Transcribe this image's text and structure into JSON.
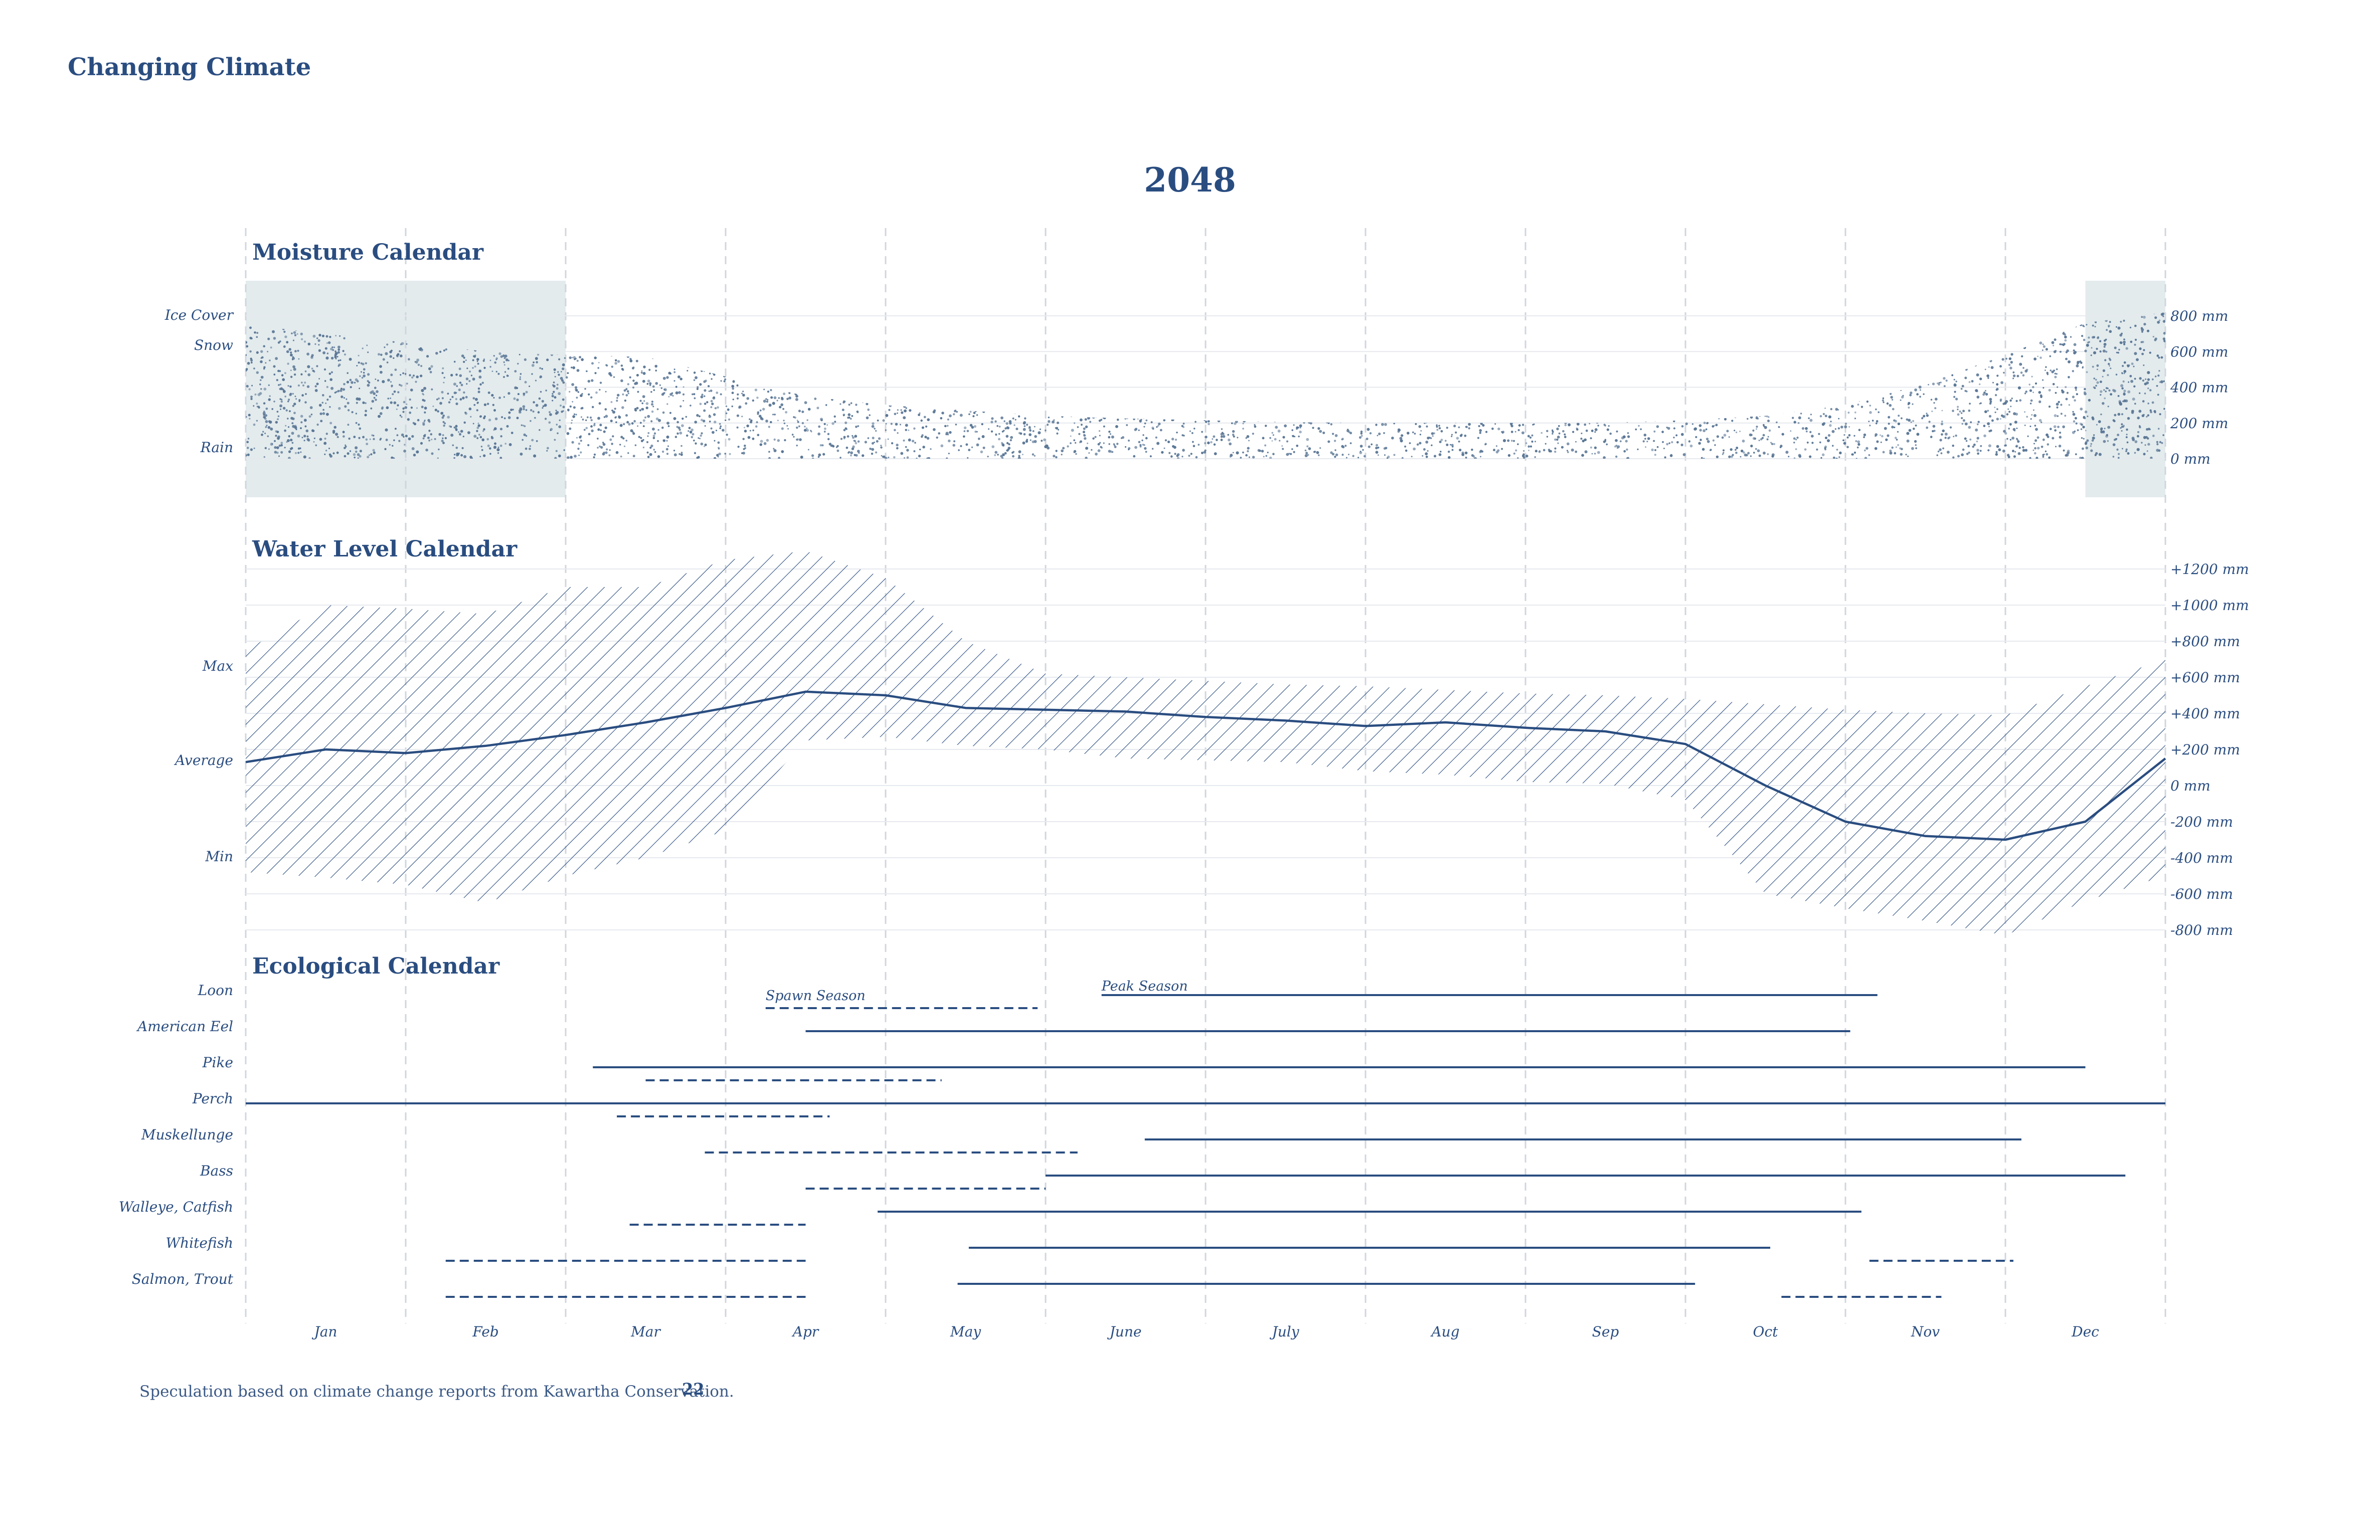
{
  "header": {
    "title": "Changing Climate"
  },
  "footer": {
    "note": "Speculation based on climate change reports from Kawartha Conservation.",
    "page_number": "22"
  },
  "colors": {
    "ink": "#2a4d80",
    "grid": "#d0d6de",
    "ice_band": "#e3ebed",
    "stipple": "#5b7796"
  },
  "chart_data": {
    "title": "2048",
    "type": "area",
    "months": [
      "Jan",
      "Feb",
      "Mar",
      "Apr",
      "May",
      "June",
      "July",
      "Aug",
      "Sep",
      "Oct",
      "Nov",
      "Dec"
    ],
    "moisture": {
      "title": "Moisture Calendar",
      "type": "area",
      "row_labels": [
        "Ice Cover",
        "Snow",
        "Rain"
      ],
      "unit_ticks": [
        "800 mm",
        "600 mm",
        "400 mm",
        "200 mm",
        "0 mm"
      ],
      "ylim": [
        0,
        800
      ],
      "ice_cover_months": [
        [
          0,
          2.0
        ],
        [
          11.5,
          12
        ]
      ],
      "x": [
        0,
        0.5,
        1,
        1.5,
        2,
        2.5,
        3,
        3.5,
        4,
        4.5,
        5,
        5.5,
        6,
        6.5,
        7,
        7.5,
        8,
        8.5,
        9,
        9.5,
        10,
        10.5,
        11,
        11.5,
        12
      ],
      "precipitation_mm": [
        750,
        700,
        650,
        600,
        580,
        570,
        460,
        350,
        300,
        270,
        240,
        225,
        215,
        205,
        200,
        200,
        200,
        200,
        215,
        240,
        300,
        420,
        580,
        760,
        820
      ]
    },
    "water_level": {
      "title": "Water Level Calendar",
      "type": "area",
      "row_labels": [
        "Max",
        "Average",
        "Min"
      ],
      "unit_ticks": [
        "+1200 mm",
        "+1000 mm",
        "+800 mm",
        "+600 mm",
        "+400 mm",
        "+200 mm",
        "0 mm",
        "-200 mm",
        "-400 mm",
        "-600 mm",
        "-800 mm"
      ],
      "ylim": [
        -800,
        1200
      ],
      "x": [
        0,
        0.5,
        1,
        1.5,
        2,
        2.5,
        3,
        3.5,
        4,
        4.5,
        5,
        5.5,
        6,
        6.5,
        7,
        7.5,
        8,
        8.5,
        9,
        9.5,
        10,
        10.5,
        11,
        11.5,
        12
      ],
      "max_mm": [
        750,
        1000,
        980,
        950,
        1100,
        1100,
        1250,
        1300,
        1150,
        800,
        620,
        600,
        580,
        560,
        550,
        530,
        510,
        500,
        480,
        450,
        420,
        400,
        390,
        550,
        700
      ],
      "average_mm": [
        130,
        200,
        180,
        220,
        280,
        350,
        430,
        520,
        500,
        430,
        420,
        410,
        380,
        360,
        330,
        350,
        320,
        300,
        230,
        0,
        -200,
        -280,
        -300,
        -200,
        150
      ],
      "min_mm": [
        -480,
        -510,
        -550,
        -650,
        -500,
        -400,
        -250,
        250,
        270,
        220,
        200,
        150,
        140,
        130,
        80,
        60,
        20,
        10,
        -80,
        -600,
        -680,
        -750,
        -830,
        -640,
        -500
      ]
    },
    "ecological": {
      "title": "Ecological Calendar",
      "legend": {
        "spawn": "Spawn Season",
        "peak": "Peak Season"
      },
      "species": [
        {
          "name": "Loon",
          "peak": [
            [
              5.35,
              10.2
            ]
          ],
          "spawn": [
            [
              3.25,
              4.95
            ]
          ]
        },
        {
          "name": "American Eel",
          "peak": [
            [
              3.5,
              10.03
            ]
          ],
          "spawn": []
        },
        {
          "name": "Pike",
          "peak": [
            [
              2.17,
              11.5
            ]
          ],
          "spawn": [
            [
              2.5,
              4.35
            ]
          ]
        },
        {
          "name": "Perch",
          "peak": [
            [
              0,
              12
            ]
          ],
          "spawn": [
            [
              2.32,
              3.65
            ]
          ]
        },
        {
          "name": "Muskellunge",
          "peak": [
            [
              5.62,
              11.1
            ]
          ],
          "spawn": [
            [
              2.87,
              5.2
            ]
          ]
        },
        {
          "name": "Bass",
          "peak": [
            [
              5.0,
              11.75
            ]
          ],
          "spawn": [
            [
              3.5,
              5.0
            ]
          ]
        },
        {
          "name": "Walleye, Catfish",
          "peak": [
            [
              3.95,
              10.1
            ]
          ],
          "spawn": [
            [
              2.4,
              3.5
            ]
          ]
        },
        {
          "name": "Whitefish",
          "peak": [
            [
              4.52,
              9.53
            ]
          ],
          "spawn": [
            [
              1.25,
              3.5
            ],
            [
              10.15,
              11.05
            ]
          ]
        },
        {
          "name": "Salmon, Trout",
          "peak": [
            [
              4.45,
              9.06
            ]
          ],
          "spawn": [
            [
              1.25,
              3.5
            ],
            [
              9.6,
              10.6
            ]
          ]
        }
      ]
    }
  }
}
